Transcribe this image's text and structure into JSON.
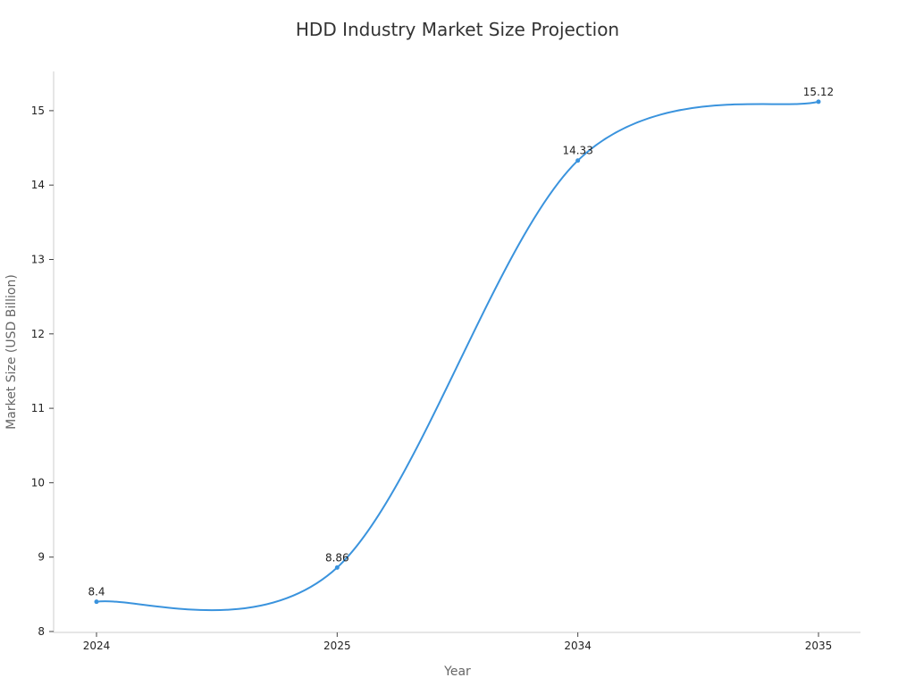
{
  "chart_data": {
    "type": "line",
    "title": "HDD Industry Market Size Projection",
    "xlabel": "Year",
    "ylabel": "Market Size (USD Billion)",
    "categories": [
      "2024",
      "2025",
      "2034",
      "2035"
    ],
    "series": [
      {
        "values": [
          8.4,
          8.86,
          14.33,
          15.12
        ],
        "color": "#3a93dd"
      }
    ],
    "data_labels": [
      "8.4",
      "8.86",
      "14.33",
      "15.12"
    ],
    "yticks": [
      8,
      9,
      10,
      11,
      12,
      13,
      14,
      15
    ],
    "ylim": [
      8,
      15.5
    ],
    "grid": false,
    "legend": "none",
    "smooth": true
  }
}
